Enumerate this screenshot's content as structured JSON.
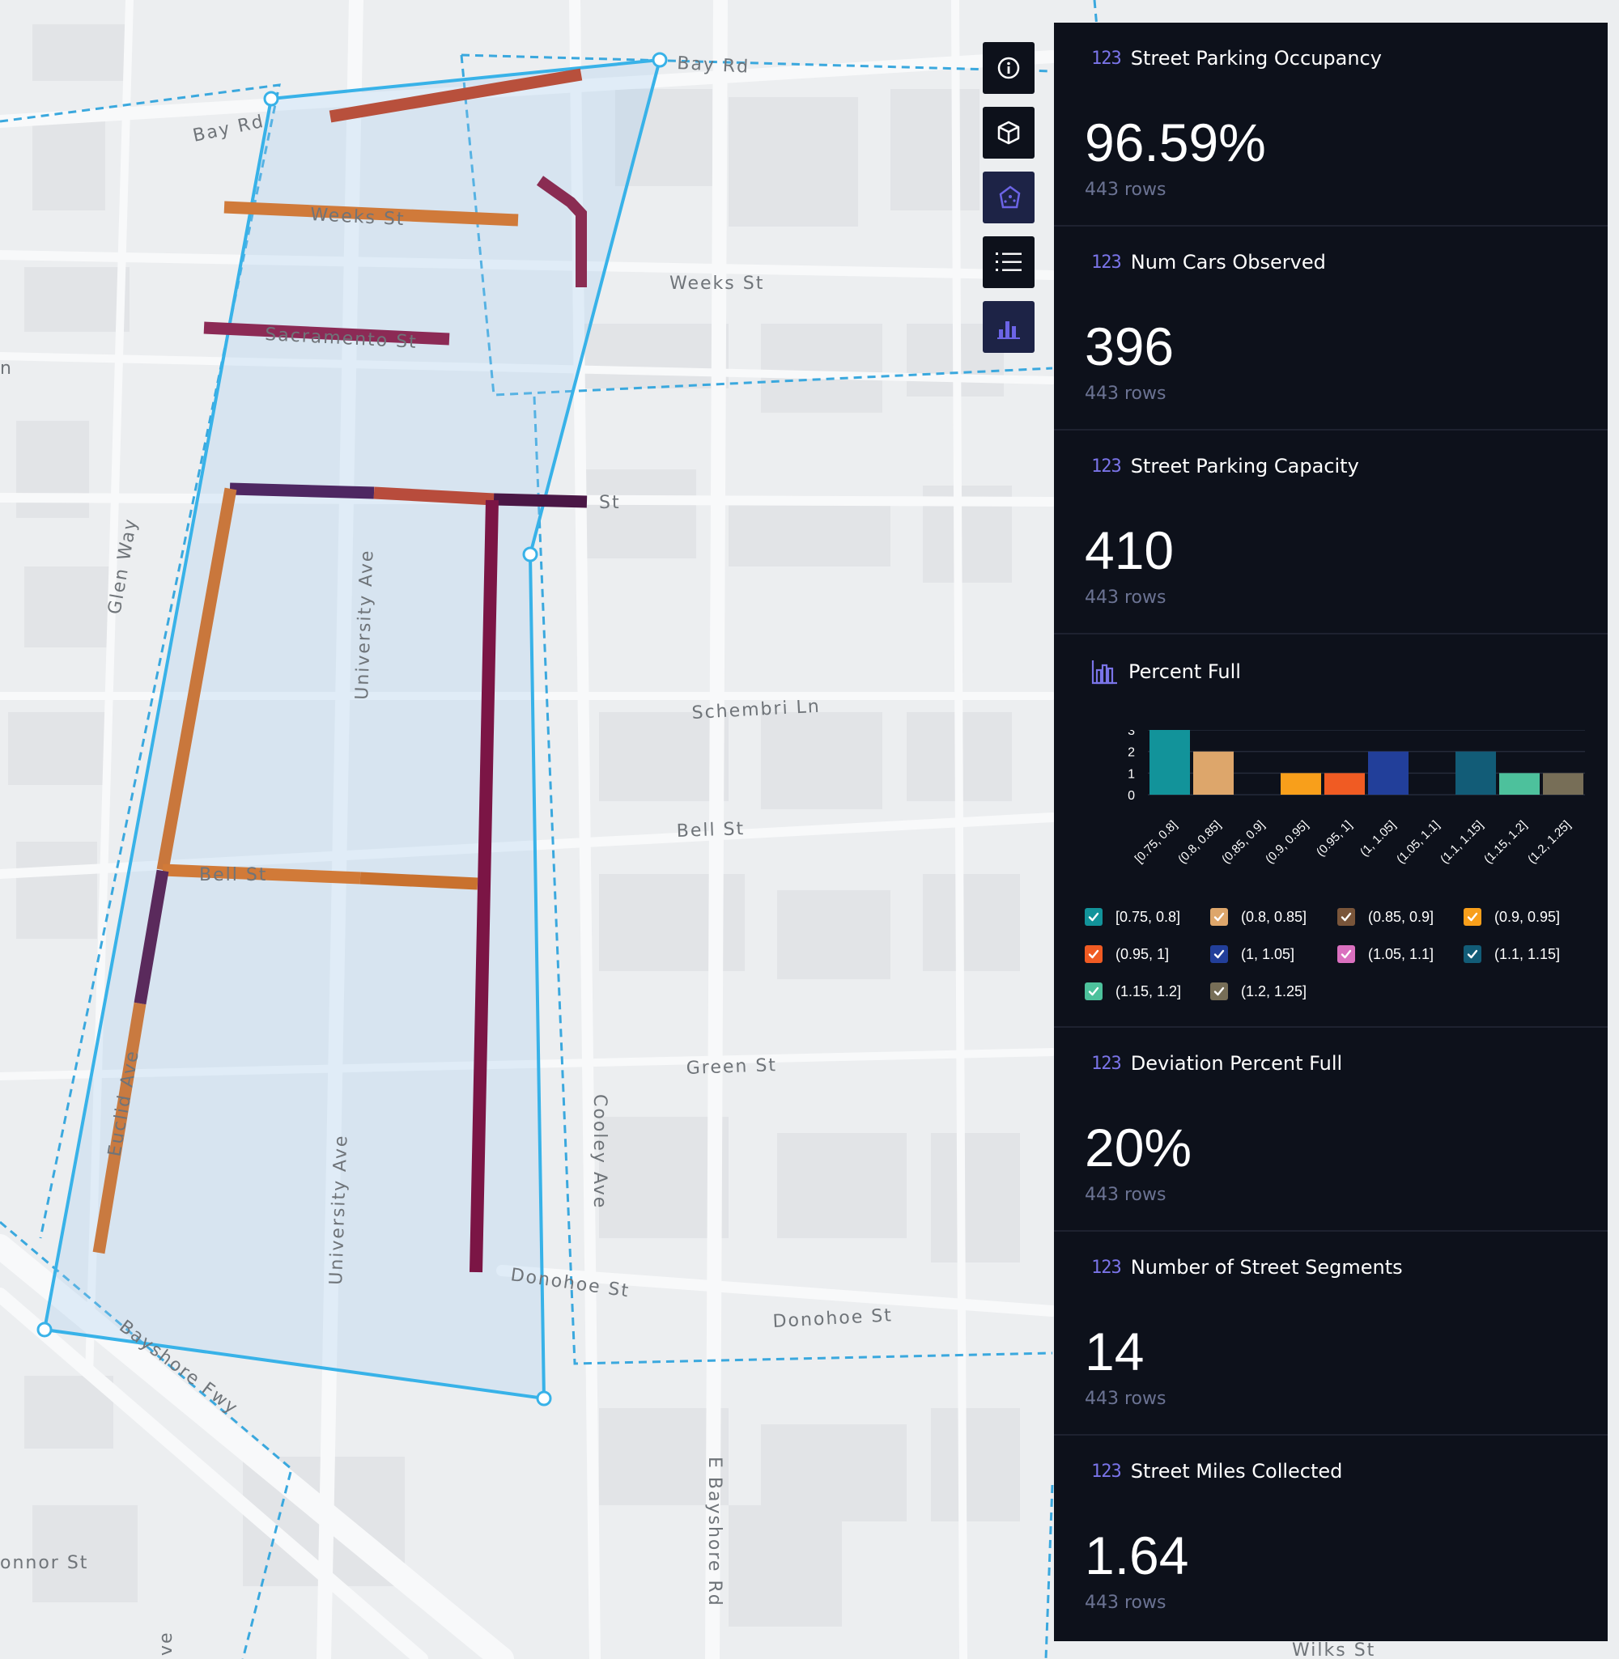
{
  "map": {
    "street_labels": {
      "bay_rd_left": "Bay Rd",
      "bay_rd_right": "Bay Rd",
      "weeks_st_inner": "Weeks St",
      "weeks_st_right": "Weeks St",
      "sacramento_st": "Sacramento St",
      "partial_st": "St",
      "glen_way": "Glen Way",
      "university_ave_top": "University Ave",
      "university_ave_bottom": "University Ave",
      "schembri_ln": "Schembri Ln",
      "bell_st_right": "Bell St",
      "bell_st_inner": "Bell St",
      "green_st": "Green St",
      "cooley_ave": "Cooley Ave",
      "euclid_ave": "Euclid Ave",
      "donohoe_st_inner": "Donohoe St",
      "donohoe_st_right": "Donohoe St",
      "bayshore_fwy": "Bayshore Fwy",
      "e_bayshore_rd": "E Bayshore Rd",
      "onnor_st": "onnor St",
      "wilks_st": "Wilks St",
      "n_label": "n",
      "ve_label": "ve"
    }
  },
  "toolbar": {
    "info_icon": "info-icon",
    "cube_icon": "cube-icon",
    "polygon_icon": "polygon-icon",
    "list_icon": "list-icon",
    "bar_chart_icon": "bar-chart-icon"
  },
  "sidebar": {
    "cards": [
      {
        "icon": "123",
        "title": "Street Parking Occupancy",
        "value": "96.59%",
        "rows": "443 rows"
      },
      {
        "icon": "123",
        "title": "Num Cars Observed",
        "value": "396",
        "rows": "443 rows"
      },
      {
        "icon": "123",
        "title": "Street Parking Capacity",
        "value": "410",
        "rows": "443 rows"
      }
    ],
    "percent_full": {
      "title": "Percent Full",
      "legend": [
        {
          "label": "[0.75, 0.8]",
          "color": "#12939a"
        },
        {
          "label": "(0.8, 0.85]",
          "color": "#dda66b"
        },
        {
          "label": "(0.85, 0.9]",
          "color": "#79553a"
        },
        {
          "label": "(0.9, 0.95]",
          "color": "#f89f1b"
        },
        {
          "label": "(0.95, 1]",
          "color": "#f05b23"
        },
        {
          "label": "(1, 1.05]",
          "color": "#223f9a"
        },
        {
          "label": "(1.05, 1.1]",
          "color": "#da70bf"
        },
        {
          "label": "(1.1, 1.15]",
          "color": "#125c77"
        },
        {
          "label": "(1.15, 1.2]",
          "color": "#4dc19c"
        },
        {
          "label": "(1.2, 1.25]",
          "color": "#776e57"
        }
      ]
    },
    "cards_bottom": [
      {
        "icon": "123",
        "title": "Deviation Percent Full",
        "value": "20%",
        "rows": "443 rows"
      },
      {
        "icon": "123",
        "title": "Number of Street Segments",
        "value": "14",
        "rows": "443 rows"
      },
      {
        "icon": "123",
        "title": "Street Miles Collected",
        "value": "1.64",
        "rows": "443 rows"
      }
    ]
  },
  "chart_data": {
    "type": "bar",
    "title": "Percent Full",
    "categories": [
      "[0.75, 0.8]",
      "(0.8, 0.85]",
      "(0.85, 0.9]",
      "(0.9, 0.95]",
      "(0.95, 1]",
      "(1, 1.05]",
      "(1.05, 1.1]",
      "(1.1, 1.15]",
      "(1.15, 1.2]",
      "(1.2, 1.25]"
    ],
    "values": [
      3,
      2,
      0,
      1,
      1,
      2,
      0,
      2,
      1,
      1
    ],
    "colors": [
      "#12939a",
      "#dda66b",
      "#79553a",
      "#f89f1b",
      "#f05b23",
      "#223f9a",
      "#da70bf",
      "#125c77",
      "#4dc19c",
      "#776e57"
    ],
    "yticks": [
      "3",
      "2",
      "1",
      "0"
    ],
    "ylim": [
      0,
      3
    ],
    "grid": true
  }
}
